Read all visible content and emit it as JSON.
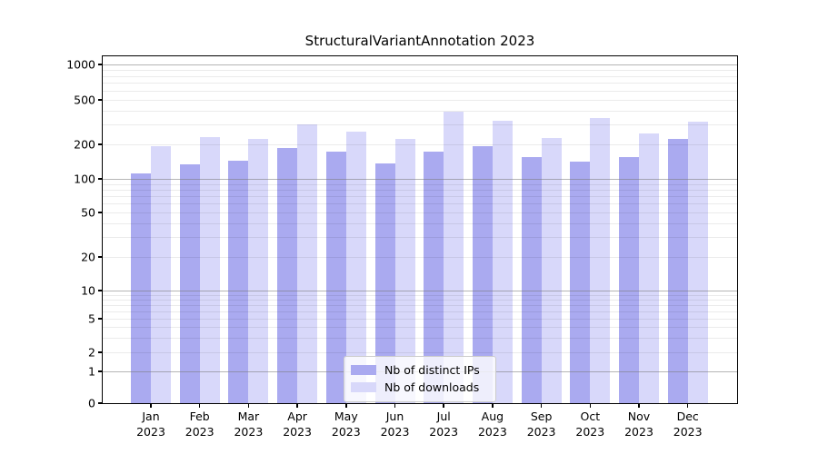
{
  "title": "StructuralVariantAnnotation 2023",
  "colors": {
    "ips": "#aaaaf0",
    "downloads": "#d8d8fa",
    "grid_major": "rgba(120,120,120,0.55)",
    "grid_minor": "rgba(0,0,0,0.08)",
    "axis": "#000000",
    "background": "#ffffff"
  },
  "legend": {
    "position": "lower center",
    "items": [
      {
        "label": "Nb of distinct IPs",
        "color_key": "ips"
      },
      {
        "label": "Nb of downloads",
        "color_key": "downloads"
      }
    ]
  },
  "chart_data": {
    "type": "bar",
    "title": "StructuralVariantAnnotation 2023",
    "categories": [
      "Jan 2023",
      "Feb 2023",
      "Mar 2023",
      "Apr 2023",
      "May 2023",
      "Jun 2023",
      "Jul 2023",
      "Aug 2023",
      "Sep 2023",
      "Oct 2023",
      "Nov 2023",
      "Dec 2023"
    ],
    "series": [
      {
        "name": "Nb of distinct IPs",
        "color_key": "ips",
        "values": [
          112,
          135,
          145,
          185,
          174,
          136,
          172,
          194,
          156,
          141,
          154,
          222
        ]
      },
      {
        "name": "Nb of downloads",
        "color_key": "downloads",
        "values": [
          193,
          232,
          225,
          303,
          260,
          225,
          394,
          327,
          228,
          344,
          249,
          317
        ]
      }
    ],
    "xlabel": "",
    "ylabel": "",
    "y_ticks": [
      0,
      1,
      2,
      5,
      10,
      20,
      50,
      100,
      200,
      500,
      1000
    ],
    "y_minor_gridlines": [
      3,
      4,
      6,
      7,
      8,
      9,
      30,
      40,
      60,
      70,
      80,
      90,
      300,
      400,
      600,
      700,
      800,
      900
    ],
    "y_major_gridlines": [
      1,
      10,
      100,
      1000
    ],
    "yscale": "pseudo-log",
    "ylim": [
      0,
      1100
    ],
    "grid": true,
    "legend_position": "lower center"
  }
}
